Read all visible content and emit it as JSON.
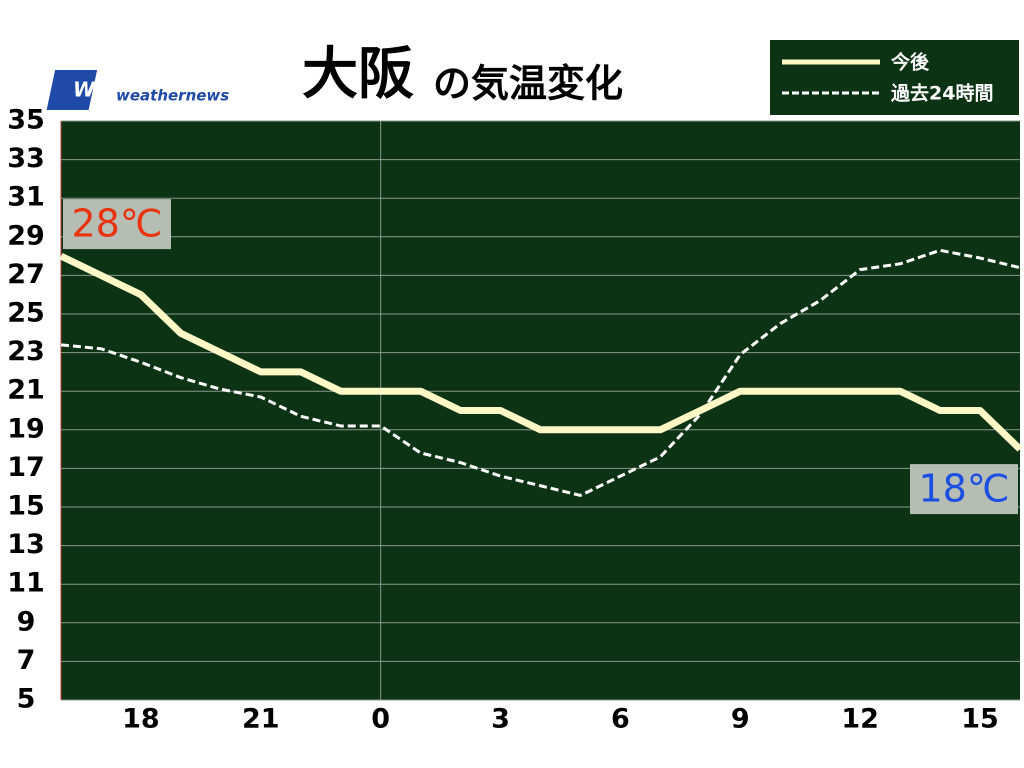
{
  "chart_data": {
    "type": "line",
    "title": "大阪",
    "subtitle": "の気温変化",
    "logo": {
      "mark": "WNI",
      "text": "weathernews"
    },
    "x": [
      -8,
      -7,
      -6,
      -5,
      -4,
      -3,
      -2,
      -1,
      0,
      1,
      2,
      3,
      4,
      5,
      6,
      7,
      8,
      9,
      10,
      11,
      12,
      13,
      14,
      15,
      16
    ],
    "xlim": [
      -8,
      16
    ],
    "xticks": [
      {
        "value": -6,
        "label": "18"
      },
      {
        "value": -3,
        "label": "21"
      },
      0,
      3,
      6,
      9,
      12,
      15
    ],
    "ylim": [
      5,
      35
    ],
    "yticks": [
      5,
      7,
      9,
      11,
      13,
      15,
      17,
      19,
      21,
      23,
      25,
      27,
      29,
      31,
      33,
      35
    ],
    "grid": true,
    "background": "#0c3314",
    "series": [
      {
        "name": "今後",
        "color": "#fdf8c6",
        "style": "solid",
        "values": [
          28,
          27,
          26,
          24,
          23,
          22,
          22,
          21,
          21,
          21,
          20,
          20,
          19,
          19,
          19,
          19,
          20,
          21,
          21,
          21,
          21,
          21,
          20,
          20,
          18
        ]
      },
      {
        "name": "過去24時間",
        "color": "#ffffff",
        "style": "dashed",
        "values": [
          23.4,
          23.2,
          22.5,
          21.7,
          21.1,
          20.7,
          19.7,
          19.2,
          19.2,
          17.8,
          17.3,
          16.6,
          16.1,
          15.6,
          16.6,
          17.6,
          19.8,
          22.9,
          24.5,
          25.7,
          27.3,
          27.6,
          28.3,
          27.9,
          27.4
        ]
      }
    ],
    "annotations": [
      {
        "text": "28℃",
        "color": "#e8330f"
      },
      {
        "text": "18℃",
        "color": "#1b4fe2"
      }
    ]
  }
}
